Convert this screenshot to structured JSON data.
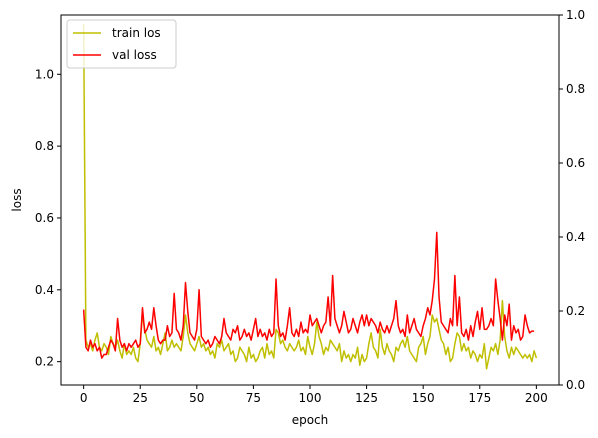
{
  "chart_data": {
    "type": "line",
    "xlabel": "epoch",
    "ylabel": "loss",
    "xlim": [
      -10,
      210
    ],
    "ylim": [
      0.135,
      1.165
    ],
    "ylim_right": [
      0,
      1
    ],
    "x_ticks": [
      0,
      25,
      50,
      75,
      100,
      125,
      150,
      175,
      200
    ],
    "y_ticks": [
      0.2,
      0.4,
      0.6,
      0.8,
      1.0
    ],
    "y_ticks_right": [
      0.0,
      0.2,
      0.4,
      0.6,
      0.8,
      1.0
    ],
    "legend_position": "top-left",
    "grid": false,
    "series": [
      {
        "name": "train los",
        "color": "#bfbf00",
        "values": [
          1.14,
          0.26,
          0.24,
          0.25,
          0.23,
          0.26,
          0.28,
          0.24,
          0.23,
          0.25,
          0.24,
          0.22,
          0.27,
          0.25,
          0.24,
          0.26,
          0.23,
          0.21,
          0.25,
          0.22,
          0.23,
          0.22,
          0.24,
          0.21,
          0.2,
          0.25,
          0.33,
          0.29,
          0.26,
          0.25,
          0.24,
          0.27,
          0.23,
          0.24,
          0.22,
          0.25,
          0.28,
          0.23,
          0.24,
          0.26,
          0.24,
          0.25,
          0.24,
          0.23,
          0.27,
          0.33,
          0.28,
          0.25,
          0.24,
          0.23,
          0.25,
          0.27,
          0.24,
          0.25,
          0.23,
          0.24,
          0.22,
          0.23,
          0.21,
          0.25,
          0.24,
          0.26,
          0.23,
          0.24,
          0.25,
          0.22,
          0.23,
          0.2,
          0.21,
          0.24,
          0.23,
          0.22,
          0.2,
          0.24,
          0.21,
          0.22,
          0.2,
          0.21,
          0.23,
          0.24,
          0.21,
          0.25,
          0.22,
          0.23,
          0.21,
          0.29,
          0.28,
          0.25,
          0.26,
          0.24,
          0.23,
          0.25,
          0.24,
          0.23,
          0.24,
          0.26,
          0.23,
          0.24,
          0.22,
          0.27,
          0.24,
          0.22,
          0.25,
          0.31,
          0.27,
          0.25,
          0.22,
          0.24,
          0.23,
          0.26,
          0.25,
          0.24,
          0.23,
          0.25,
          0.2,
          0.23,
          0.21,
          0.22,
          0.2,
          0.22,
          0.21,
          0.24,
          0.19,
          0.22,
          0.2,
          0.21,
          0.25,
          0.28,
          0.24,
          0.23,
          0.21,
          0.29,
          0.24,
          0.22,
          0.25,
          0.23,
          0.22,
          0.2,
          0.24,
          0.23,
          0.25,
          0.26,
          0.24,
          0.27,
          0.23,
          0.22,
          0.21,
          0.2,
          0.24,
          0.25,
          0.27,
          0.22,
          0.25,
          0.27,
          0.33,
          0.31,
          0.32,
          0.29,
          0.26,
          0.25,
          0.22,
          0.24,
          0.2,
          0.21,
          0.25,
          0.28,
          0.27,
          0.23,
          0.25,
          0.23,
          0.24,
          0.21,
          0.23,
          0.22,
          0.2,
          0.22,
          0.21,
          0.25,
          0.18,
          0.21,
          0.24,
          0.23,
          0.25,
          0.22,
          0.26,
          0.37,
          0.27,
          0.23,
          0.21,
          0.24,
          0.22,
          0.24,
          0.23,
          0.22,
          0.21,
          0.22,
          0.21,
          0.22,
          0.2,
          0.23,
          0.21
        ]
      },
      {
        "name": "val loss",
        "color": "#ff0000",
        "values": [
          0.345,
          0.24,
          0.23,
          0.26,
          0.24,
          0.25,
          0.23,
          0.24,
          0.21,
          0.22,
          0.22,
          0.24,
          0.26,
          0.25,
          0.23,
          0.32,
          0.26,
          0.24,
          0.25,
          0.23,
          0.25,
          0.24,
          0.25,
          0.26,
          0.24,
          0.25,
          0.35,
          0.28,
          0.29,
          0.31,
          0.29,
          0.35,
          0.3,
          0.26,
          0.25,
          0.26,
          0.26,
          0.3,
          0.27,
          0.28,
          0.39,
          0.29,
          0.28,
          0.26,
          0.3,
          0.42,
          0.34,
          0.28,
          0.27,
          0.26,
          0.29,
          0.4,
          0.27,
          0.26,
          0.25,
          0.26,
          0.24,
          0.25,
          0.27,
          0.26,
          0.25,
          0.27,
          0.32,
          0.28,
          0.27,
          0.26,
          0.29,
          0.28,
          0.3,
          0.26,
          0.27,
          0.29,
          0.27,
          0.28,
          0.26,
          0.29,
          0.32,
          0.27,
          0.29,
          0.27,
          0.28,
          0.26,
          0.29,
          0.27,
          0.28,
          0.43,
          0.3,
          0.27,
          0.28,
          0.26,
          0.3,
          0.35,
          0.28,
          0.27,
          0.29,
          0.27,
          0.31,
          0.28,
          0.29,
          0.28,
          0.33,
          0.3,
          0.31,
          0.32,
          0.3,
          0.28,
          0.3,
          0.31,
          0.38,
          0.3,
          0.44,
          0.32,
          0.3,
          0.28,
          0.3,
          0.34,
          0.31,
          0.28,
          0.29,
          0.32,
          0.3,
          0.28,
          0.31,
          0.33,
          0.3,
          0.33,
          0.3,
          0.32,
          0.31,
          0.3,
          0.28,
          0.31,
          0.29,
          0.28,
          0.3,
          0.28,
          0.3,
          0.32,
          0.37,
          0.3,
          0.28,
          0.29,
          0.27,
          0.33,
          0.28,
          0.3,
          0.32,
          0.29,
          0.28,
          0.27,
          0.3,
          0.32,
          0.35,
          0.33,
          0.37,
          0.43,
          0.56,
          0.38,
          0.31,
          0.3,
          0.29,
          0.28,
          0.32,
          0.3,
          0.44,
          0.3,
          0.38,
          0.28,
          0.27,
          0.29,
          0.26,
          0.3,
          0.27,
          0.31,
          0.34,
          0.29,
          0.35,
          0.29,
          0.29,
          0.3,
          0.32,
          0.3,
          0.43,
          0.37,
          0.32,
          0.26,
          0.33,
          0.3,
          0.36,
          0.26,
          0.3,
          0.28,
          0.29,
          0.26,
          0.27,
          0.33,
          0.3,
          0.28,
          0.285,
          0.285
        ]
      }
    ]
  }
}
